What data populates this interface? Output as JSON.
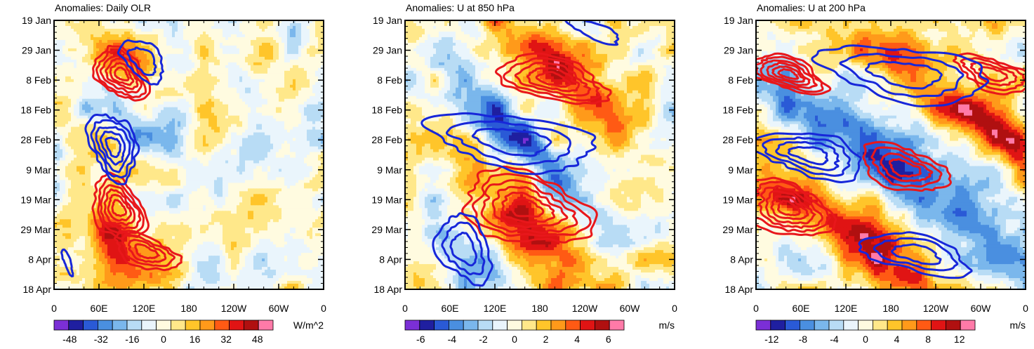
{
  "chart_data": [
    {
      "type": "heatmap",
      "title": "Anomalies: Daily OLR",
      "units": "W/m^2",
      "y_ticks": [
        "19 Jan",
        "29 Jan",
        "8 Feb",
        "18 Feb",
        "28 Feb",
        "9 Mar",
        "19 Mar",
        "29 Mar",
        "8 Apr",
        "18 Apr"
      ],
      "x_ticks": [
        "0",
        "60E",
        "120E",
        "180",
        "120W",
        "60W",
        "0"
      ],
      "colorbar_labels": [
        "-48",
        "-32",
        "-16",
        "0",
        "16",
        "32",
        "48"
      ],
      "colorbar_range": [
        -56,
        56
      ],
      "xlim": [
        0,
        360
      ],
      "ylim_days": [
        0,
        89
      ]
    },
    {
      "type": "heatmap",
      "title": "Anomalies: U at 850 hPa",
      "units": "m/s",
      "y_ticks": [
        "19 Jan",
        "29 Jan",
        "8 Feb",
        "18 Feb",
        "28 Feb",
        "9 Mar",
        "19 Mar",
        "29 Mar",
        "8 Apr",
        "18 Apr"
      ],
      "x_ticks": [
        "0",
        "60E",
        "120E",
        "180",
        "120W",
        "60W",
        "0"
      ],
      "colorbar_labels": [
        "-6",
        "-4",
        "-2",
        "0",
        "2",
        "4",
        "6"
      ],
      "colorbar_range": [
        -7,
        7
      ],
      "xlim": [
        0,
        360
      ],
      "ylim_days": [
        0,
        89
      ]
    },
    {
      "type": "heatmap",
      "title": "Anomalies: U at 200 hPa",
      "units": "m/s",
      "y_ticks": [
        "19 Jan",
        "29 Jan",
        "8 Feb",
        "18 Feb",
        "28 Feb",
        "9 Mar",
        "19 Mar",
        "29 Mar",
        "8 Apr",
        "18 Apr"
      ],
      "x_ticks": [
        "0",
        "60E",
        "120E",
        "180",
        "120W",
        "60W",
        "0"
      ],
      "colorbar_labels": [
        "-12",
        "-8",
        "-4",
        "0",
        "4",
        "8",
        "12"
      ],
      "colorbar_range": [
        -14,
        14
      ],
      "xlim": [
        0,
        360
      ],
      "ylim_days": [
        0,
        89
      ]
    }
  ],
  "colors": {
    "palette": [
      "#7b2fd6",
      "#1f1fa0",
      "#2a5ad6",
      "#4a8fe0",
      "#7ab7ec",
      "#b8dcf5",
      "#eaf5fc",
      "#fffbe0",
      "#ffe88a",
      "#ffc52a",
      "#ff9a1a",
      "#ff5a14",
      "#e01414",
      "#b01010",
      "#ff7aa8"
    ],
    "positive_contour": "#e8171b",
    "negative_contour": "#1727d9"
  }
}
